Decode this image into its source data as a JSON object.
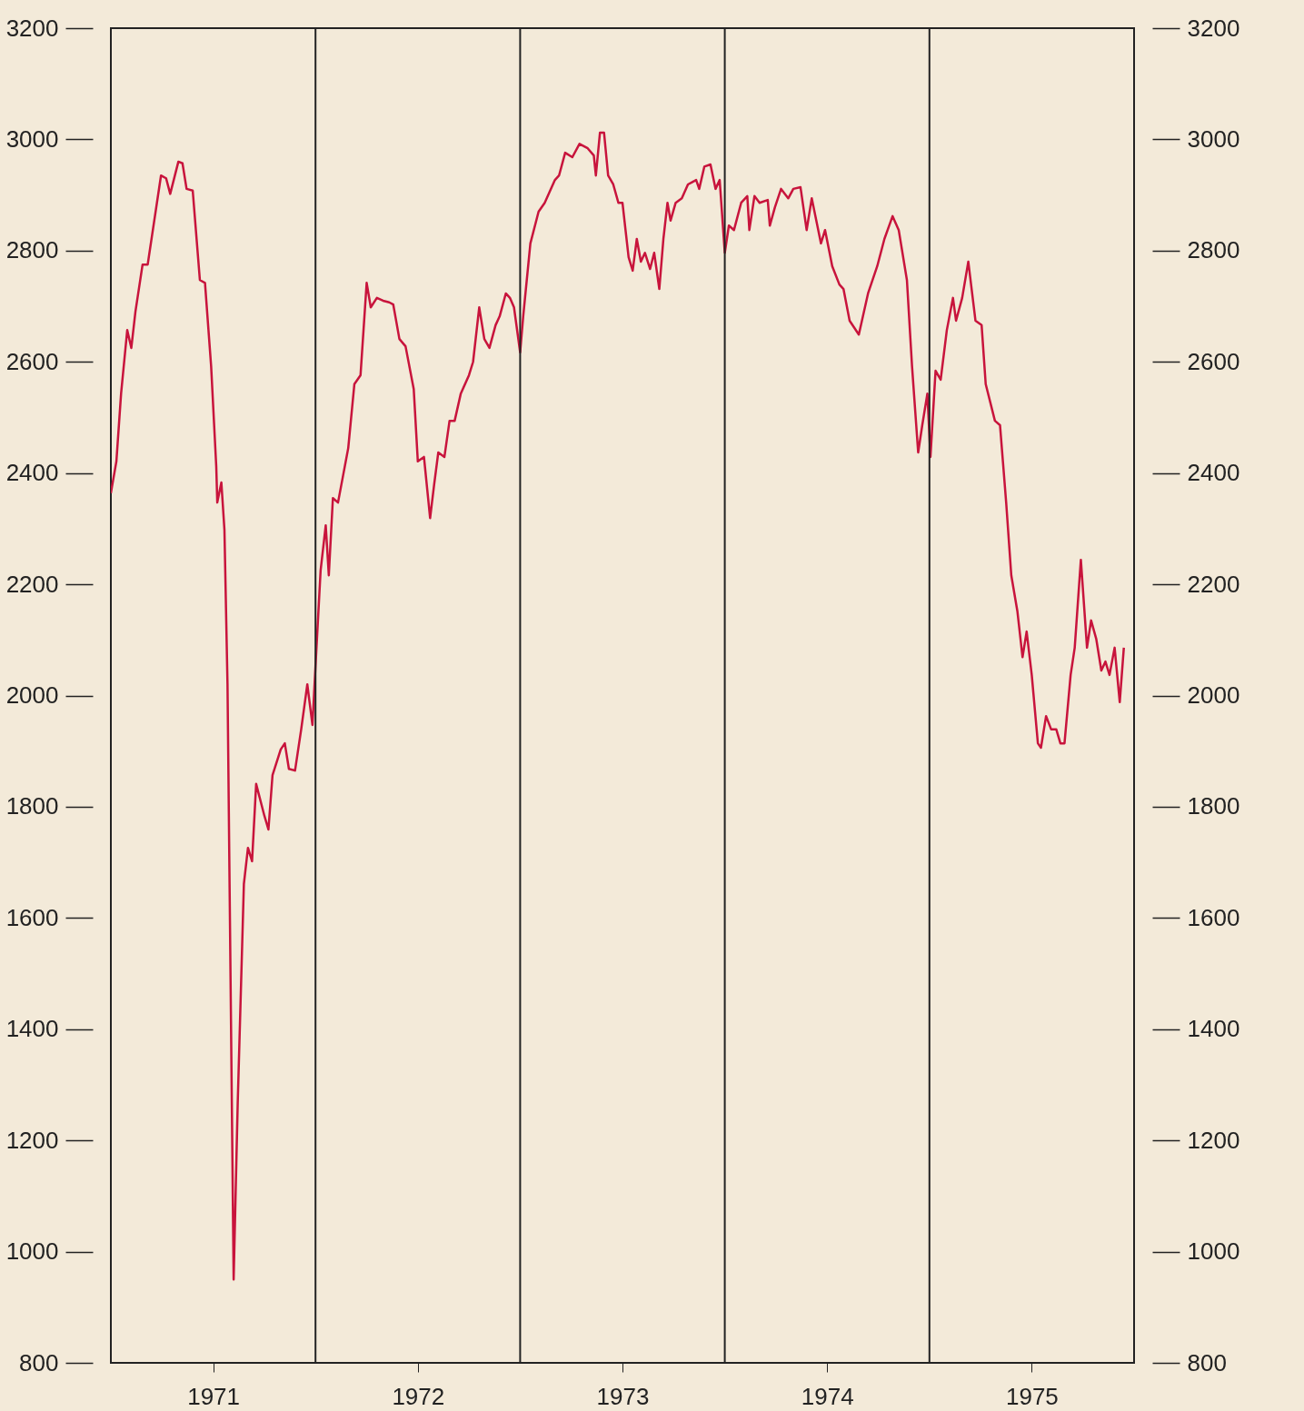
{
  "chart_data": {
    "type": "line",
    "x": [
      1971.0,
      1971.027,
      1971.05,
      1971.08,
      1971.1,
      1971.12,
      1971.155,
      1971.18,
      1971.245,
      1971.27,
      1971.29,
      1971.33,
      1971.35,
      1971.37,
      1971.4,
      1971.435,
      1971.46,
      1971.49,
      1971.515,
      1971.52,
      1971.54,
      1971.555,
      1971.57,
      1971.6,
      1971.62,
      1971.65,
      1971.67,
      1971.69,
      1971.71,
      1971.75,
      1971.77,
      1971.79,
      1971.83,
      1971.85,
      1971.87,
      1971.9,
      1971.93,
      1971.96,
      1971.985,
      1972.0,
      1972.025,
      1972.05,
      1972.065,
      1972.085,
      1972.11,
      1972.135,
      1972.16,
      1972.19,
      1972.22,
      1972.25,
      1972.27,
      1972.3,
      1972.33,
      1972.36,
      1972.38,
      1972.41,
      1972.44,
      1972.48,
      1972.5,
      1972.53,
      1972.56,
      1972.58,
      1972.6,
      1972.63,
      1972.655,
      1972.68,
      1972.71,
      1972.75,
      1972.77,
      1972.8,
      1972.825,
      1972.85,
      1972.88,
      1972.9,
      1972.93,
      1972.95,
      1972.97,
      1973.0,
      1973.015,
      1973.05,
      1973.09,
      1973.12,
      1973.17,
      1973.19,
      1973.22,
      1973.255,
      1973.29,
      1973.33,
      1973.36,
      1973.37,
      1973.39,
      1973.41,
      1973.43,
      1973.455,
      1973.48,
      1973.5,
      1973.53,
      1973.55,
      1973.57,
      1973.59,
      1973.61,
      1973.635,
      1973.655,
      1973.68,
      1973.7,
      1973.72,
      1973.735,
      1973.76,
      1973.79,
      1973.82,
      1973.86,
      1973.875,
      1973.9,
      1973.93,
      1973.955,
      1973.975,
      1974.0,
      1974.02,
      1974.045,
      1974.08,
      1974.11,
      1974.12,
      1974.145,
      1974.17,
      1974.21,
      1974.22,
      1974.245,
      1974.275,
      1974.31,
      1974.335,
      1974.37,
      1974.4,
      1974.425,
      1974.47,
      1974.49,
      1974.525,
      1974.56,
      1974.58,
      1974.61,
      1974.655,
      1974.7,
      1974.745,
      1974.78,
      1974.82,
      1974.85,
      1974.89,
      1974.915,
      1974.945,
      1974.965,
      1974.99,
      1975.005,
      1975.03,
      1975.055,
      1975.085,
      1975.115,
      1975.13,
      1975.16,
      1975.19,
      1975.225,
      1975.255,
      1975.275,
      1975.32,
      1975.345,
      1975.375,
      1975.4,
      1975.43,
      1975.455,
      1975.475,
      1975.5,
      1975.53,
      1975.545,
      1975.57,
      1975.595,
      1975.62,
      1975.64,
      1975.66,
      1975.69,
      1975.71,
      1975.74,
      1975.77,
      1975.79,
      1975.815,
      1975.84,
      1975.86,
      1975.88,
      1975.905,
      1975.93,
      1975.95
    ],
    "series": [
      {
        "color": "#c8143c",
        "values": [
          2364,
          2421,
          2543,
          2657,
          2625,
          2690,
          2775,
          2775,
          2935,
          2930,
          2902,
          2960,
          2957,
          2911,
          2908,
          2747,
          2742,
          2592,
          2412,
          2347,
          2383,
          2298,
          2020,
          950,
          1269,
          1661,
          1726,
          1702,
          1841,
          1784,
          1759,
          1857,
          1903,
          1914,
          1868,
          1865,
          1939,
          2020,
          1947,
          2053,
          2225,
          2306,
          2216,
          2355,
          2347,
          2396,
          2445,
          2560,
          2576,
          2742,
          2698,
          2715,
          2710,
          2707,
          2703,
          2641,
          2628,
          2551,
          2421,
          2429,
          2319,
          2380,
          2437,
          2429,
          2494,
          2494,
          2543,
          2576,
          2600,
          2698,
          2641,
          2625,
          2666,
          2682,
          2723,
          2715,
          2698,
          2617,
          2682,
          2813,
          2870,
          2886,
          2927,
          2935,
          2976,
          2968,
          2992,
          2984,
          2971,
          2935,
          3012,
          3012,
          2935,
          2919,
          2886,
          2886,
          2788,
          2764,
          2821,
          2780,
          2796,
          2767,
          2796,
          2731,
          2821,
          2886,
          2854,
          2886,
          2894,
          2919,
          2927,
          2911,
          2951,
          2955,
          2911,
          2927,
          2796,
          2845,
          2837,
          2886,
          2898,
          2837,
          2898,
          2886,
          2891,
          2845,
          2878,
          2911,
          2894,
          2911,
          2914,
          2837,
          2894,
          2813,
          2837,
          2772,
          2739,
          2731,
          2674,
          2649,
          2723,
          2772,
          2821,
          2862,
          2837,
          2747,
          2592,
          2437,
          2486,
          2543,
          2429,
          2584,
          2568,
          2657,
          2715,
          2674,
          2715,
          2780,
          2674,
          2666,
          2560,
          2494,
          2486,
          2347,
          2216,
          2151,
          2069,
          2115,
          2037,
          1914,
          1906,
          1963,
          1939,
          1939,
          1914,
          1914,
          2037,
          2086,
          2244,
          2086,
          2135,
          2102,
          2045,
          2061,
          2037,
          2086,
          1988,
          2086
        ]
      }
    ],
    "xlim": [
      1971,
      1976
    ],
    "xticks": [
      {
        "value": 1971.5,
        "label": "1971"
      },
      {
        "value": 1972.5,
        "label": "1972"
      },
      {
        "value": 1973.5,
        "label": "1973"
      },
      {
        "value": 1974.5,
        "label": "1974"
      },
      {
        "value": 1975.5,
        "label": "1975"
      }
    ],
    "ylim": [
      800,
      3200
    ],
    "yticks": [
      800,
      1000,
      1200,
      1400,
      1600,
      1800,
      2000,
      2200,
      2400,
      2600,
      2800,
      3000,
      3200
    ],
    "y2lim": [
      800,
      3200
    ],
    "y2ticks": [
      800,
      1000,
      1200,
      1400,
      1600,
      1800,
      2000,
      2200,
      2400,
      2600,
      2800,
      3000,
      3200
    ],
    "ref_lines": [
      {
        "axis": "x",
        "value": 1972
      },
      {
        "axis": "x",
        "value": 1973
      },
      {
        "axis": "x",
        "value": 1974
      },
      {
        "axis": "x",
        "value": 1975
      }
    ]
  }
}
